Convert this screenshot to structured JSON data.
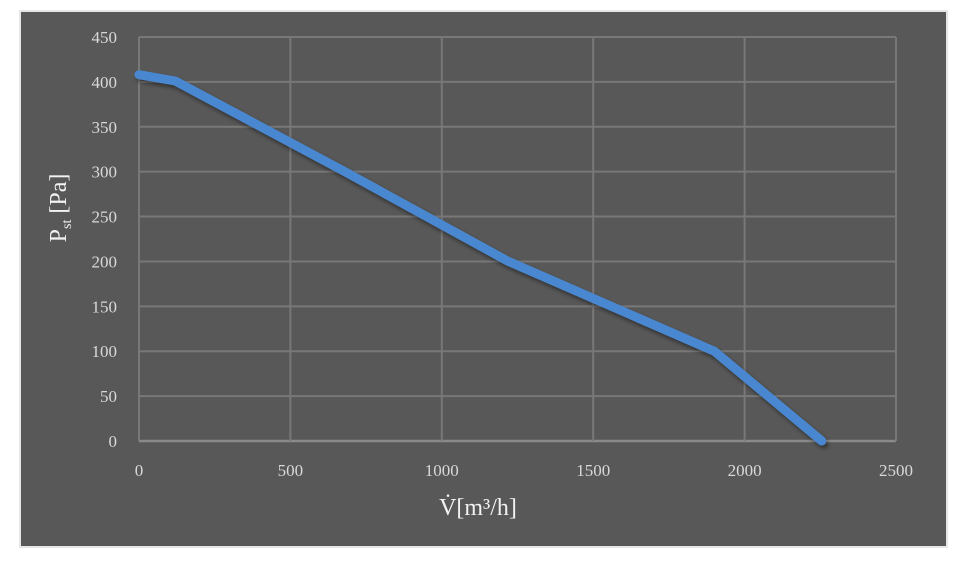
{
  "chart_data": {
    "type": "line",
    "title": "",
    "xlabel": "V̇[m³/h]",
    "ylabel": {
      "main": "P",
      "sub": "st",
      "unit": " [Pa]"
    },
    "xlim": [
      0,
      2500
    ],
    "ylim": [
      0,
      450
    ],
    "x_ticks": [
      0,
      500,
      1000,
      1500,
      2000,
      2500
    ],
    "y_ticks": [
      0,
      50,
      100,
      150,
      200,
      250,
      300,
      350,
      400,
      450
    ],
    "grid": true,
    "legend": "none",
    "series": [
      {
        "color": "#4a88d0",
        "points": [
          {
            "x": 0,
            "y": 408
          },
          {
            "x": 120,
            "y": 401
          },
          {
            "x": 680,
            "y": 300
          },
          {
            "x": 1220,
            "y": 200
          },
          {
            "x": 1900,
            "y": 100
          },
          {
            "x": 2255,
            "y": 0
          }
        ]
      }
    ],
    "colors": {
      "plot_background": "#585858",
      "grid": "#787878",
      "frame": "#e6e6e6",
      "tick_text": "#d9d9d9",
      "title_text": "#f2f2f2"
    }
  }
}
